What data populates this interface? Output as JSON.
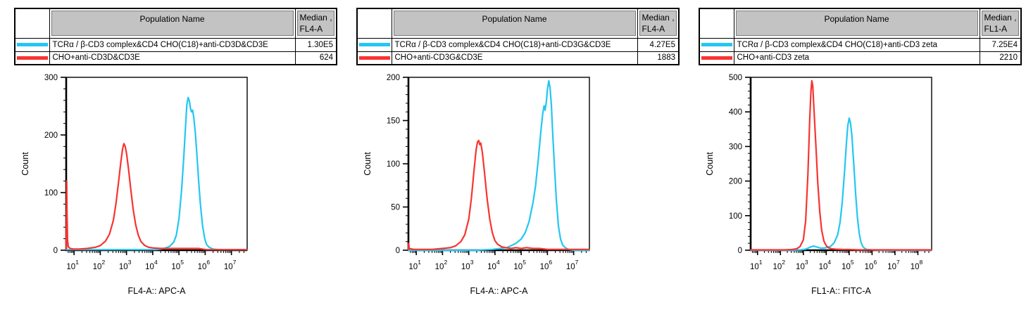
{
  "background": "#ffffff",
  "panels": [
    {
      "table": {
        "header": {
          "population": "Population Name",
          "median_line1": "Median ,",
          "median_line2": "FL4-A"
        },
        "rows": [
          {
            "swatch_color": "#22c7f2",
            "name": "TCRα / β-CD3 complex&CD4 CHO(C18)+anti-CD3D&CD3E",
            "median": "1.30E5"
          },
          {
            "swatch_color": "#f93330",
            "name": "CHO+anti-CD3D&CD3E",
            "median": "624"
          }
        ]
      }
    },
    {
      "table": {
        "header": {
          "population": "Population Name",
          "median_line1": "Median ,",
          "median_line2": "FL4-A"
        },
        "rows": [
          {
            "swatch_color": "#22c7f2",
            "name": "TCRα / β-CD3 complex&CD4 CHO(C18)+anti-CD3G&CD3E",
            "median": "4.27E5"
          },
          {
            "swatch_color": "#f93330",
            "name": "CHO+anti-CD3G&CD3E",
            "median": "1883"
          }
        ]
      }
    },
    {
      "table": {
        "header": {
          "population": "Population Name",
          "median_line1": "Median ,",
          "median_line2": "FL1-A"
        },
        "rows": [
          {
            "swatch_color": "#22c7f2",
            "name": "TCRα / β-CD3 complex&CD4 CHO(C18)+anti-CD3 zeta",
            "median": "7.25E4"
          },
          {
            "swatch_color": "#f93330",
            "name": "CHO+anti-CD3 zeta",
            "median": "2210"
          }
        ]
      }
    }
  ],
  "chart_data": [
    {
      "type": "line",
      "subtype": "flow-cytometry-histogram-overlay",
      "title": "",
      "xlabel": "FL4-A:: APC-A",
      "ylabel": "Count",
      "x_scale": "log10",
      "x_tick_base": "10",
      "x_decades": [
        1,
        2,
        3,
        4,
        5,
        6,
        7
      ],
      "x_log_range": [
        0.7,
        7.6
      ],
      "ylim": [
        0,
        300
      ],
      "yticks": [
        0,
        100,
        200,
        300
      ],
      "grid": false,
      "legend": "table-above",
      "series": [
        {
          "name": "TCRα / β-CD3 complex&CD4 CHO(C18)+anti-CD3D&CD3E",
          "color": "#22c7f2",
          "median": "1.30E5",
          "points": [
            [
              0.7,
              1
            ],
            [
              1.5,
              1
            ],
            [
              2.5,
              1
            ],
            [
              3.3,
              1
            ],
            [
              3.8,
              1
            ],
            [
              4.1,
              1
            ],
            [
              4.3,
              2
            ],
            [
              4.5,
              4
            ],
            [
              4.65,
              7
            ],
            [
              4.8,
              14
            ],
            [
              4.9,
              26
            ],
            [
              5.0,
              55
            ],
            [
              5.1,
              105
            ],
            [
              5.18,
              160
            ],
            [
              5.25,
              215
            ],
            [
              5.3,
              252
            ],
            [
              5.35,
              265
            ],
            [
              5.4,
              258
            ],
            [
              5.44,
              246
            ],
            [
              5.48,
              240
            ],
            [
              5.52,
              243
            ],
            [
              5.56,
              232
            ],
            [
              5.62,
              205
            ],
            [
              5.68,
              168
            ],
            [
              5.75,
              120
            ],
            [
              5.82,
              78
            ],
            [
              5.9,
              42
            ],
            [
              5.98,
              20
            ],
            [
              6.05,
              10
            ],
            [
              6.15,
              5
            ],
            [
              6.3,
              2
            ],
            [
              6.5,
              1
            ],
            [
              6.9,
              1
            ],
            [
              7.3,
              1
            ],
            [
              7.58,
              1
            ]
          ]
        },
        {
          "name": "CHO+anti-CD3D&CD3E",
          "color": "#f93330",
          "median": "624",
          "points": [
            [
              0.7,
              2
            ],
            [
              0.71,
              60
            ],
            [
              0.72,
              120
            ],
            [
              0.73,
              70
            ],
            [
              0.75,
              18
            ],
            [
              0.78,
              6
            ],
            [
              0.85,
              3
            ],
            [
              1.0,
              2
            ],
            [
              1.2,
              2
            ],
            [
              1.5,
              3
            ],
            [
              1.8,
              5
            ],
            [
              2.0,
              8
            ],
            [
              2.2,
              16
            ],
            [
              2.35,
              28
            ],
            [
              2.5,
              52
            ],
            [
              2.6,
              82
            ],
            [
              2.7,
              120
            ],
            [
              2.78,
              152
            ],
            [
              2.85,
              176
            ],
            [
              2.9,
              185
            ],
            [
              2.95,
              180
            ],
            [
              3.0,
              168
            ],
            [
              3.08,
              140
            ],
            [
              3.15,
              110
            ],
            [
              3.25,
              72
            ],
            [
              3.35,
              44
            ],
            [
              3.45,
              26
            ],
            [
              3.55,
              15
            ],
            [
              3.7,
              8
            ],
            [
              3.85,
              5
            ],
            [
              4.0,
              4
            ],
            [
              4.3,
              3
            ],
            [
              4.7,
              3
            ],
            [
              5.1,
              3
            ],
            [
              5.5,
              3
            ],
            [
              5.75,
              3
            ],
            [
              5.9,
              2
            ],
            [
              6.05,
              1
            ],
            [
              6.5,
              1
            ],
            [
              7.0,
              1
            ],
            [
              7.58,
              1
            ]
          ]
        }
      ]
    },
    {
      "type": "line",
      "subtype": "flow-cytometry-histogram-overlay",
      "title": "",
      "xlabel": "FL4-A:: APC-A",
      "ylabel": "Count",
      "x_scale": "log10",
      "x_tick_base": "10",
      "x_decades": [
        1,
        2,
        3,
        4,
        5,
        6,
        7
      ],
      "x_log_range": [
        0.7,
        7.6
      ],
      "ylim": [
        0,
        200
      ],
      "yticks": [
        0,
        50,
        100,
        150,
        200
      ],
      "grid": false,
      "legend": "table-above",
      "series": [
        {
          "name": "TCRα / β-CD3 complex&CD4 CHO(C18)+anti-CD3G&CD3E",
          "color": "#22c7f2",
          "median": "4.27E5",
          "points": [
            [
              0.7,
              0
            ],
            [
              1.5,
              0
            ],
            [
              2.5,
              0
            ],
            [
              3.3,
              0
            ],
            [
              3.9,
              1
            ],
            [
              4.2,
              2
            ],
            [
              4.45,
              3
            ],
            [
              4.6,
              5
            ],
            [
              4.8,
              8
            ],
            [
              5.0,
              13
            ],
            [
              5.15,
              20
            ],
            [
              5.3,
              33
            ],
            [
              5.45,
              55
            ],
            [
              5.55,
              75
            ],
            [
              5.65,
              105
            ],
            [
              5.75,
              138
            ],
            [
              5.82,
              158
            ],
            [
              5.87,
              167
            ],
            [
              5.91,
              162
            ],
            [
              5.96,
              172
            ],
            [
              6.0,
              186
            ],
            [
              6.05,
              196
            ],
            [
              6.1,
              188
            ],
            [
              6.15,
              168
            ],
            [
              6.2,
              135
            ],
            [
              6.27,
              95
            ],
            [
              6.34,
              58
            ],
            [
              6.42,
              28
            ],
            [
              6.5,
              13
            ],
            [
              6.58,
              6
            ],
            [
              6.68,
              3
            ],
            [
              6.8,
              1
            ],
            [
              7.0,
              0
            ],
            [
              7.3,
              0
            ],
            [
              7.58,
              0
            ]
          ]
        },
        {
          "name": "CHO+anti-CD3G&CD3E",
          "color": "#f93330",
          "median": "1883",
          "points": [
            [
              0.7,
              1
            ],
            [
              0.71,
              8
            ],
            [
              0.73,
              2
            ],
            [
              0.9,
              1
            ],
            [
              1.2,
              1
            ],
            [
              1.6,
              1
            ],
            [
              2.0,
              2
            ],
            [
              2.3,
              3
            ],
            [
              2.5,
              5
            ],
            [
              2.7,
              10
            ],
            [
              2.85,
              18
            ],
            [
              3.0,
              36
            ],
            [
              3.1,
              60
            ],
            [
              3.2,
              92
            ],
            [
              3.28,
              116
            ],
            [
              3.33,
              125
            ],
            [
              3.38,
              127
            ],
            [
              3.42,
              122
            ],
            [
              3.46,
              124
            ],
            [
              3.52,
              113
            ],
            [
              3.6,
              90
            ],
            [
              3.7,
              60
            ],
            [
              3.8,
              36
            ],
            [
              3.9,
              20
            ],
            [
              4.0,
              11
            ],
            [
              4.1,
              7
            ],
            [
              4.25,
              4
            ],
            [
              4.4,
              3
            ],
            [
              4.6,
              2
            ],
            [
              4.8,
              3
            ],
            [
              5.0,
              2
            ],
            [
              5.2,
              3
            ],
            [
              5.45,
              2
            ],
            [
              5.7,
              2
            ],
            [
              6.0,
              1
            ],
            [
              6.4,
              1
            ],
            [
              6.9,
              1
            ],
            [
              7.3,
              1
            ],
            [
              7.58,
              1
            ]
          ]
        }
      ]
    },
    {
      "type": "line",
      "subtype": "flow-cytometry-histogram-overlay",
      "title": "",
      "xlabel": "FL1-A:: FITC-A",
      "ylabel": "Count",
      "x_scale": "log10",
      "x_tick_base": "10",
      "x_decades": [
        1,
        2,
        3,
        4,
        5,
        6,
        7,
        8
      ],
      "x_log_range": [
        0.7,
        8.6
      ],
      "ylim": [
        0,
        500
      ],
      "yticks": [
        0,
        100,
        200,
        300,
        400,
        500
      ],
      "grid": false,
      "legend": "table-above",
      "series": [
        {
          "name": "TCRα / β-CD3 complex&CD4 CHO(C18)+anti-CD3 zeta",
          "color": "#22c7f2",
          "median": "7.25E4",
          "points": [
            [
              0.7,
              0
            ],
            [
              1.5,
              0
            ],
            [
              2.4,
              0
            ],
            [
              2.9,
              1
            ],
            [
              3.1,
              3
            ],
            [
              3.3,
              9
            ],
            [
              3.45,
              12
            ],
            [
              3.6,
              9
            ],
            [
              3.75,
              6
            ],
            [
              3.9,
              6
            ],
            [
              4.05,
              8
            ],
            [
              4.2,
              12
            ],
            [
              4.35,
              22
            ],
            [
              4.5,
              45
            ],
            [
              4.6,
              80
            ],
            [
              4.7,
              140
            ],
            [
              4.8,
              230
            ],
            [
              4.88,
              310
            ],
            [
              4.94,
              360
            ],
            [
              5.0,
              382
            ],
            [
              5.06,
              368
            ],
            [
              5.12,
              330
            ],
            [
              5.2,
              250
            ],
            [
              5.28,
              165
            ],
            [
              5.36,
              95
            ],
            [
              5.44,
              48
            ],
            [
              5.52,
              22
            ],
            [
              5.6,
              10
            ],
            [
              5.7,
              4
            ],
            [
              5.8,
              2
            ],
            [
              6.0,
              1
            ],
            [
              6.4,
              0
            ],
            [
              7.0,
              0
            ],
            [
              7.8,
              0
            ],
            [
              8.58,
              0
            ]
          ]
        },
        {
          "name": "CHO+anti-CD3 zeta",
          "color": "#f93330",
          "median": "2210",
          "points": [
            [
              0.7,
              1
            ],
            [
              1.5,
              1
            ],
            [
              2.2,
              1
            ],
            [
              2.5,
              2
            ],
            [
              2.7,
              4
            ],
            [
              2.85,
              10
            ],
            [
              3.0,
              30
            ],
            [
              3.1,
              85
            ],
            [
              3.2,
              220
            ],
            [
              3.28,
              380
            ],
            [
              3.33,
              460
            ],
            [
              3.37,
              490
            ],
            [
              3.41,
              475
            ],
            [
              3.47,
              400
            ],
            [
              3.55,
              300
            ],
            [
              3.63,
              195
            ],
            [
              3.72,
              110
            ],
            [
              3.8,
              58
            ],
            [
              3.9,
              26
            ],
            [
              4.0,
              13
            ],
            [
              4.1,
              7
            ],
            [
              4.25,
              4
            ],
            [
              4.4,
              3
            ],
            [
              4.7,
              2
            ],
            [
              5.0,
              2
            ],
            [
              5.4,
              1
            ],
            [
              5.8,
              1
            ],
            [
              6.3,
              1
            ],
            [
              7.0,
              1
            ],
            [
              7.7,
              1
            ],
            [
              8.3,
              1
            ],
            [
              8.58,
              1
            ]
          ]
        }
      ]
    }
  ]
}
